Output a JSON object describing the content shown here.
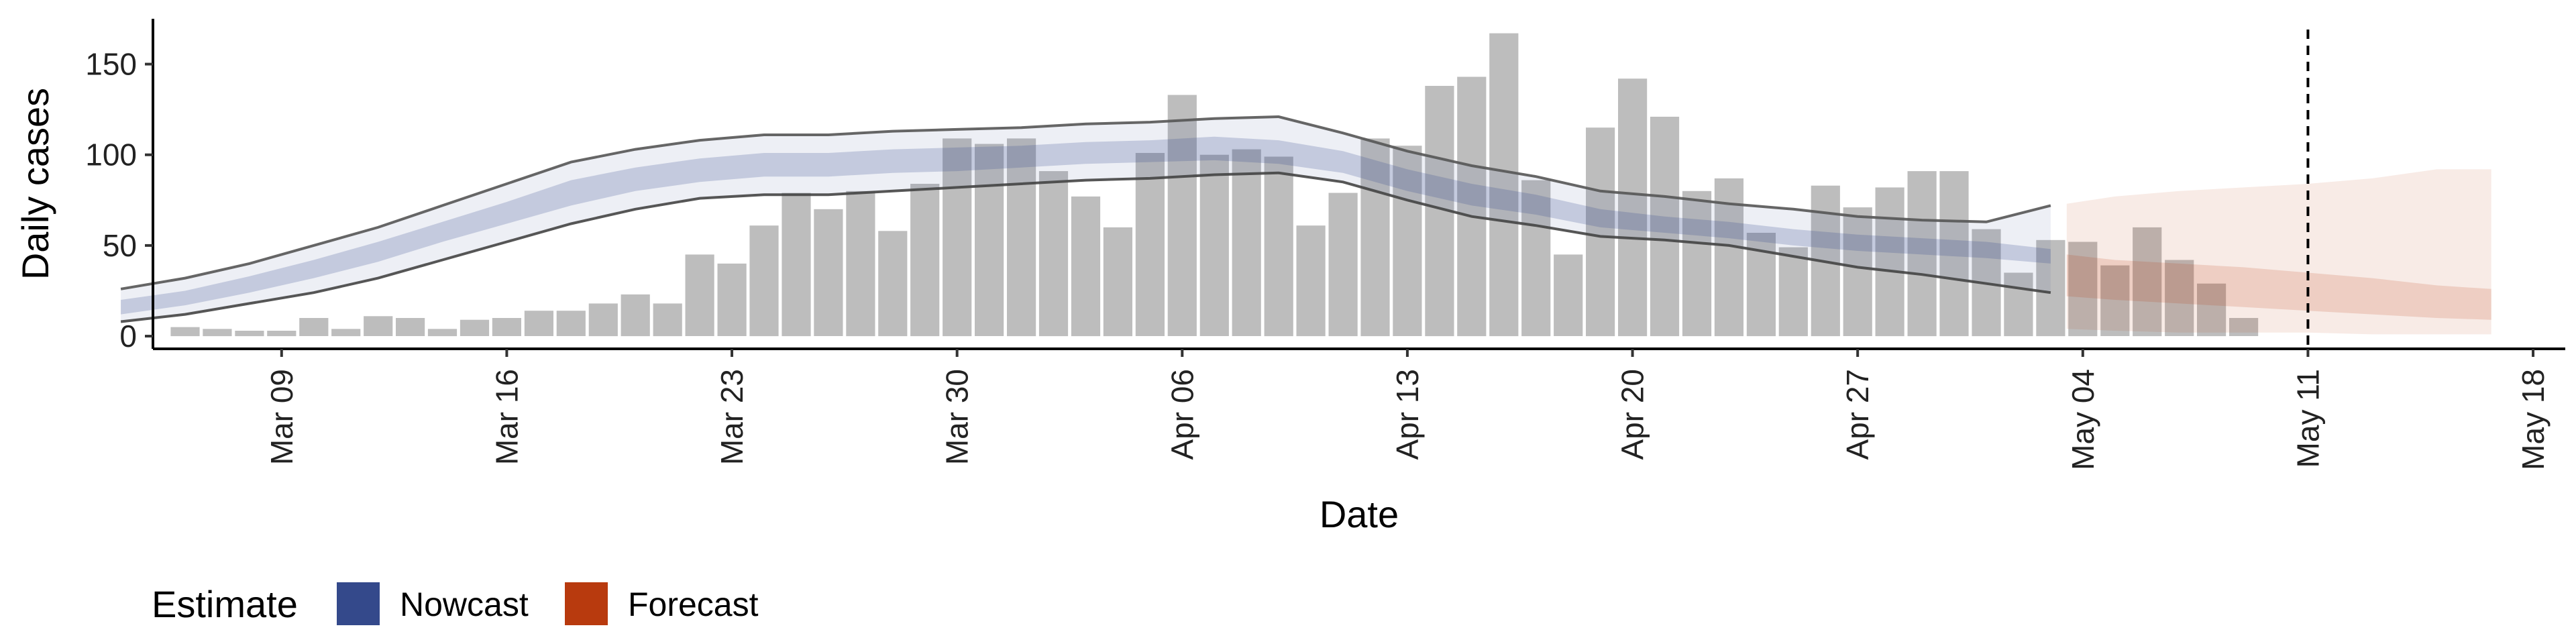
{
  "chart_data": {
    "type": "bar",
    "xlabel": "Date",
    "ylabel": "Daily cases",
    "x_axis": {
      "start_date": "2020-03-06",
      "min_day": -1,
      "max_day": 74,
      "ticks": [
        {
          "day": 3,
          "label": "Mar 09"
        },
        {
          "day": 10,
          "label": "Mar 16"
        },
        {
          "day": 17,
          "label": "Mar 23"
        },
        {
          "day": 24,
          "label": "Mar 30"
        },
        {
          "day": 31,
          "label": "Apr 06"
        },
        {
          "day": 38,
          "label": "Apr 13"
        },
        {
          "day": 45,
          "label": "Apr 20"
        },
        {
          "day": 52,
          "label": "Apr 27"
        },
        {
          "day": 59,
          "label": "May 04"
        },
        {
          "day": 66,
          "label": "May 11"
        },
        {
          "day": 73,
          "label": "May 18"
        }
      ]
    },
    "y_axis": {
      "min": -7,
      "max": 175,
      "ticks": [
        0,
        50,
        100,
        150
      ]
    },
    "grid": false,
    "bars": {
      "name": "Daily cases",
      "color": "#bdbdbd",
      "start_day": 0,
      "values": [
        5,
        4,
        3,
        3,
        10,
        4,
        11,
        10,
        4,
        9,
        10,
        14,
        14,
        18,
        23,
        18,
        45,
        40,
        61,
        79,
        70,
        80,
        58,
        84,
        109,
        106,
        109,
        91,
        77,
        60,
        101,
        133,
        100,
        103,
        99,
        61,
        79,
        109,
        105,
        138,
        143,
        167,
        86,
        45,
        115,
        142,
        121,
        80,
        87,
        57,
        49,
        83,
        71,
        82,
        91,
        91,
        59,
        35,
        53,
        52,
        39,
        60,
        42,
        29,
        10
      ]
    },
    "nowcast": {
      "name": "Nowcast",
      "color": "#34498b",
      "days": [
        -2,
        0,
        2,
        4,
        6,
        8,
        10,
        12,
        14,
        16,
        18,
        20,
        22,
        24,
        26,
        28,
        30,
        32,
        34,
        36,
        38,
        40,
        42,
        44,
        46,
        48,
        50,
        52,
        54,
        56,
        58
      ],
      "outer_upper": [
        26,
        32,
        40,
        50,
        60,
        72,
        84,
        96,
        103,
        108,
        111,
        111,
        113,
        114,
        115,
        117,
        118,
        120,
        121,
        112,
        102,
        94,
        88,
        80,
        77,
        73,
        70,
        66,
        64,
        63,
        72
      ],
      "outer_lower": [
        8,
        12,
        18,
        24,
        32,
        42,
        52,
        62,
        70,
        76,
        78,
        78,
        80,
        82,
        84,
        86,
        87,
        89,
        90,
        85,
        75,
        66,
        61,
        55,
        53,
        50,
        44,
        38,
        34,
        29,
        24
      ],
      "band_upper": [
        20,
        25,
        33,
        42,
        52,
        63,
        74,
        86,
        93,
        98,
        101,
        101,
        103,
        104,
        105,
        107,
        108,
        110,
        108,
        102,
        92,
        84,
        78,
        70,
        66,
        63,
        59,
        56,
        54,
        52,
        48
      ],
      "band_lower": [
        12,
        17,
        24,
        32,
        41,
        52,
        62,
        72,
        80,
        85,
        88,
        88,
        90,
        91,
        93,
        95,
        96,
        97,
        95,
        90,
        80,
        72,
        67,
        60,
        57,
        54,
        50,
        47,
        45,
        43,
        40
      ]
    },
    "forecast": {
      "name": "Forecast",
      "color": "#b83a0e",
      "days": [
        58.5,
        60,
        62,
        64,
        66,
        68,
        70,
        71.7
      ],
      "outer_upper": [
        73,
        77,
        80,
        82,
        84,
        87,
        92,
        92
      ],
      "outer_lower": [
        4,
        3,
        2,
        2,
        2,
        1,
        1,
        1
      ],
      "band_upper": [
        45,
        42,
        40,
        38,
        35,
        32,
        28,
        26
      ],
      "band_lower": [
        22,
        20,
        18,
        16,
        14,
        12,
        10,
        9
      ]
    },
    "vline": {
      "day": 66,
      "style": "dashed"
    },
    "legend": {
      "title": "Estimate",
      "position": "bottom-left",
      "entries": [
        {
          "label": "Nowcast",
          "color": "#34498b"
        },
        {
          "label": "Forecast",
          "color": "#b83a0e"
        }
      ]
    }
  }
}
